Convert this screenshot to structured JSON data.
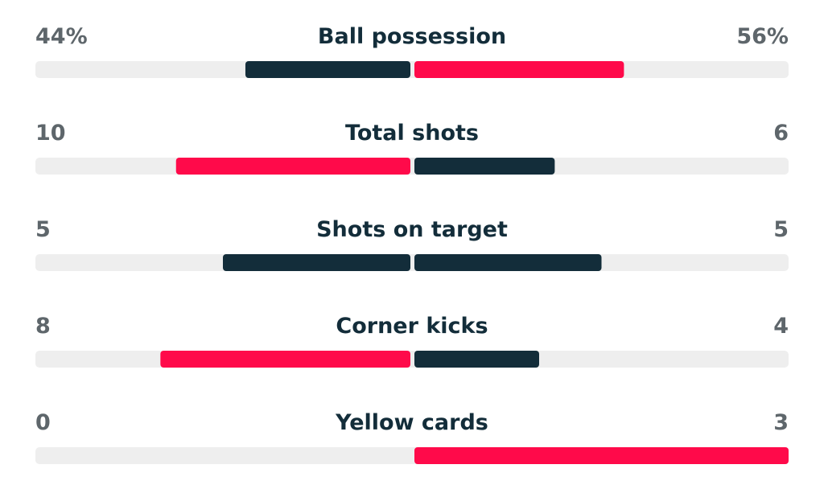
{
  "stats": [
    {
      "label": "Ball possession",
      "home": {
        "value": 44,
        "label": "44%"
      },
      "away": {
        "value": 56,
        "label": "56%"
      }
    },
    {
      "label": "Total shots",
      "home": 10,
      "away": 6
    },
    {
      "label": "Shots on target",
      "home": 5,
      "away": 5
    },
    {
      "label": "Corner kicks",
      "home": 8,
      "away": 4
    },
    {
      "label": "Yellow cards",
      "home": 0,
      "away": 3
    }
  ],
  "colors": {
    "leading": "#ff0a4a",
    "trailing": "#132d3a",
    "track": "#eeeeee"
  }
}
